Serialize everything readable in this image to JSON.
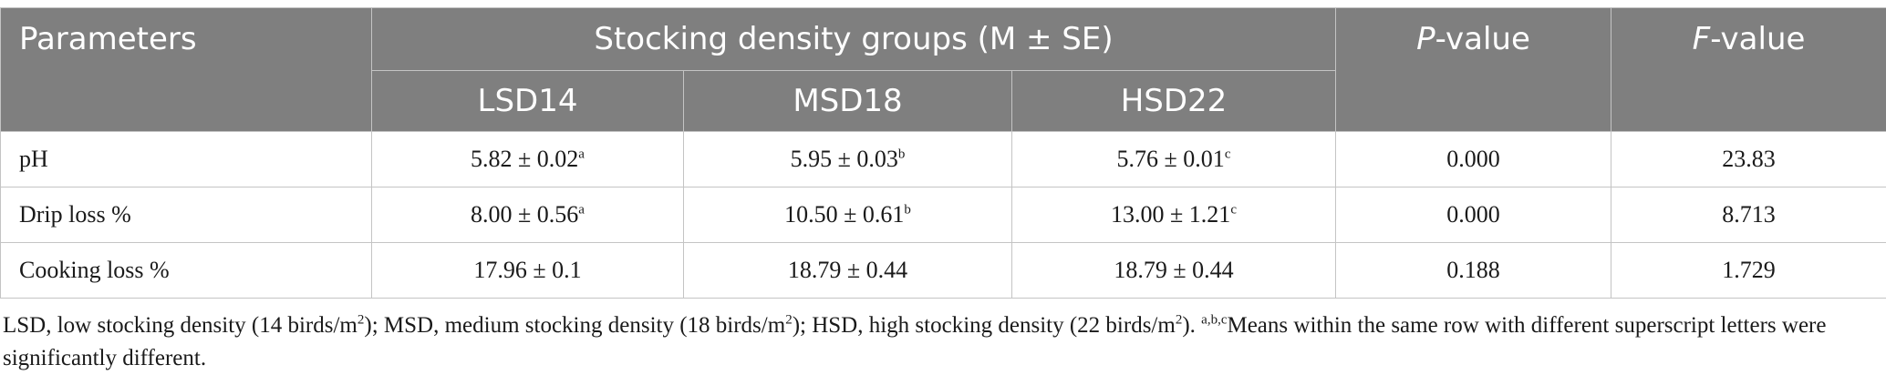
{
  "table": {
    "header": {
      "parameters": "Parameters",
      "group_caption": "Stocking density groups (M ± SE)",
      "p_italic": "P",
      "p_rest": "-value",
      "f_italic": "F",
      "f_rest": "-value",
      "groups": [
        "LSD14",
        "MSD18",
        "HSD22"
      ]
    },
    "rows": [
      {
        "parameter": "pH",
        "cells": [
          {
            "value": "5.82 ± 0.02",
            "sup": "a"
          },
          {
            "value": "5.95 ± 0.03",
            "sup": "b"
          },
          {
            "value": "5.76 ± 0.01",
            "sup": "c"
          }
        ],
        "p_value": "0.000",
        "f_value": "23.83"
      },
      {
        "parameter": "Drip loss %",
        "cells": [
          {
            "value": "8.00 ± 0.56",
            "sup": "a"
          },
          {
            "value": "10.50 ± 0.61",
            "sup": "b"
          },
          {
            "value": "13.00 ± 1.21",
            "sup": "c"
          }
        ],
        "p_value": "0.000",
        "f_value": "8.713"
      },
      {
        "parameter": "Cooking loss %",
        "cells": [
          {
            "value": "17.96 ± 0.1",
            "sup": ""
          },
          {
            "value": "18.79 ± 0.44",
            "sup": ""
          },
          {
            "value": "18.79 ± 0.44",
            "sup": ""
          }
        ],
        "p_value": "0.188",
        "f_value": "1.729"
      }
    ]
  },
  "footnote": {
    "part1": "LSD, low stocking density (14 birds/m",
    "sup1": "2",
    "part2": "); MSD, medium stocking density (18 birds/m",
    "sup2": "2",
    "part3": "); HSD, high stocking density (22 birds/m",
    "sup3": "2",
    "part4": "). ",
    "sup4": "a,b,c",
    "part5": "Means within the same row with different superscript letters were significantly different."
  }
}
